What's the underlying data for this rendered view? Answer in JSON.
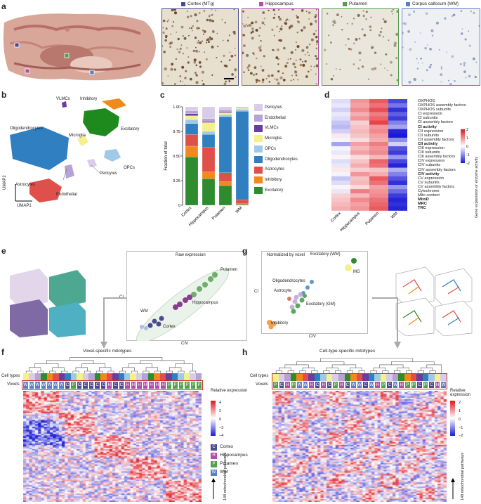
{
  "panels": {
    "a": "a",
    "b": "b",
    "c": "c",
    "d": "d",
    "e": "e",
    "f": "f",
    "g": "g",
    "h": "h"
  },
  "a": {
    "regions": [
      {
        "label": "Cortex (MTg)",
        "color": "#4b4b8f"
      },
      {
        "label": "Hippocampus",
        "color": "#b04ea8"
      },
      {
        "label": "Putamen",
        "color": "#54a04e"
      },
      {
        "label": "Corpus callosum (WM)",
        "color": "#5b7fc6"
      }
    ]
  },
  "b": {
    "labels": [
      "VLMCs",
      "Inhibitory",
      "Oligodendrocytes",
      "Microglia",
      "Excitatory",
      "OPCs",
      "Astrocytes",
      "Pericytes",
      "Endothelial"
    ],
    "xaxis": "UMAP1",
    "yaxis": "UMAP2"
  },
  "chart_data": [
    {
      "type": "bar",
      "stacked": true,
      "categories": [
        "Cortex",
        "Hippocampus",
        "Putamen",
        "WM"
      ],
      "ylabel": "Fraction of total",
      "ylim": [
        0,
        1
      ],
      "yticks": [
        "0",
        "0.25",
        "0.50",
        "0.75",
        "1.00"
      ],
      "legend_position": "right",
      "series": [
        {
          "name": "Excitatory",
          "color": "#2e8b2e",
          "values": [
            0.49,
            0.27,
            0.2,
            0.01
          ]
        },
        {
          "name": "Inhibitory",
          "color": "#f08a1c",
          "values": [
            0.11,
            0.07,
            0.04,
            0.005
          ]
        },
        {
          "name": "Astrocytes",
          "color": "#e0504a",
          "values": [
            0.12,
            0.25,
            0.09,
            0.04
          ]
        },
        {
          "name": "Oligodendrocytes",
          "color": "#2f7fc1",
          "values": [
            0.11,
            0.13,
            0.57,
            0.9
          ]
        },
        {
          "name": "OPCs",
          "color": "#9ecae8",
          "values": [
            0.04,
            0.03,
            0.02,
            0.02
          ]
        },
        {
          "name": "Microglia",
          "color": "#f4f08a",
          "values": [
            0.04,
            0.09,
            0.02,
            0.01
          ]
        },
        {
          "name": "VLMCs",
          "color": "#6a3d9a",
          "values": [
            0.02,
            0.01,
            0.01,
            0.003
          ]
        },
        {
          "name": "Endothelial",
          "color": "#b6a2d4",
          "values": [
            0.03,
            0.03,
            0.02,
            0.008
          ]
        },
        {
          "name": "Pericytes",
          "color": "#d9cce8",
          "values": [
            0.04,
            0.12,
            0.03,
            0.004
          ]
        }
      ]
    },
    {
      "type": "heatmap",
      "columns": [
        "Cortex",
        "Hippocampus",
        "Putamen",
        "WM"
      ],
      "rows": [
        "OXPHOS",
        "OXPHOS assembly factors",
        "OXPHOS subunits",
        "CI expression",
        "CI subunits",
        "CI assembly factors",
        "CI activity",
        "CII expression",
        "CII subunits",
        "CII assembly factors",
        "CII activity",
        "CIII expression",
        "CIII subunits",
        "CIII assembly factors",
        "CIV expression",
        "CIV subunits",
        "CIV assembly factors",
        "CIV activity",
        "CV expression",
        "CV subunits",
        "CV assembly factors",
        "Cytochrome",
        "Mito content",
        "MitoD",
        "MRC",
        "TRC"
      ],
      "bold_rows": [
        "CI activity",
        "CII activity",
        "CIV activity",
        "MitoD",
        "MRC",
        "TRC"
      ],
      "values": [
        [
          -0.3,
          0.9,
          1.4,
          -1.6
        ],
        [
          -0.2,
          0.8,
          1.2,
          -1.2
        ],
        [
          -0.4,
          1.0,
          1.5,
          -1.8
        ],
        [
          -0.2,
          0.7,
          1.1,
          -1.4
        ],
        [
          -0.3,
          0.9,
          1.3,
          -1.7
        ],
        [
          -0.5,
          0.4,
          1.6,
          -1.1
        ],
        [
          -0.6,
          0.5,
          0.9,
          -0.8
        ],
        [
          -0.4,
          0.6,
          1.0,
          -1.9
        ],
        [
          0.2,
          0.5,
          0.8,
          -2.0
        ],
        [
          -0.1,
          0.3,
          0.7,
          -1.0
        ],
        [
          -0.8,
          0.8,
          1.1,
          -0.4
        ],
        [
          -0.1,
          0.6,
          0.9,
          -1.5
        ],
        [
          -0.2,
          0.8,
          1.0,
          -1.7
        ],
        [
          0.1,
          0.3,
          0.6,
          -0.9
        ],
        [
          -0.3,
          0.5,
          1.3,
          -1.6
        ],
        [
          -0.2,
          0.7,
          1.2,
          -1.9
        ],
        [
          0.2,
          0.4,
          0.5,
          -0.7
        ],
        [
          -0.1,
          0.9,
          0.7,
          -1.1
        ],
        [
          -0.5,
          0.5,
          1.4,
          -1.5
        ],
        [
          -0.3,
          0.6,
          1.2,
          -1.8
        ],
        [
          0.1,
          0.3,
          0.8,
          -0.9
        ],
        [
          -0.2,
          1.1,
          0.9,
          -1.3
        ],
        [
          0.4,
          0.6,
          1.0,
          -1.7
        ],
        [
          0.5,
          1.0,
          1.2,
          -1.9
        ],
        [
          0.6,
          0.8,
          1.3,
          -1.8
        ],
        [
          0.7,
          0.9,
          1.4,
          -1.9
        ]
      ],
      "colorbar": {
        "ticks": [
          "2",
          "1",
          "0",
          "-1",
          "-2"
        ],
        "label": "Gene expression or enzyme activity"
      }
    }
  ],
  "e": {
    "title": "Raw expression",
    "xlabel": "CIV",
    "ylabel": "CI",
    "labels": [
      "Putamen",
      "Hippocampus",
      "WM",
      "Cortex"
    ]
  },
  "g": {
    "title": "Normalized by voxel",
    "xlabel": "CIV",
    "ylabel": "CI",
    "labels": [
      "Excitatory (WM)",
      "MG",
      "Oligodendrocytes",
      "Astrocyte",
      "Excitatory (GM)",
      "Inhibitory"
    ]
  },
  "f": {
    "title": "Voxel-specific mitotypes",
    "rowlabels": [
      "Cell types",
      "Voxels"
    ],
    "voxels": [
      "W",
      "W",
      "W",
      "W",
      "W",
      "W",
      "W",
      "C",
      "P",
      "C",
      "C",
      "C",
      "C",
      "C",
      "H",
      "C",
      "C",
      "H",
      "H",
      "H",
      "H",
      "H",
      "H",
      "H",
      "P",
      "P",
      "P",
      "P",
      "P",
      "P"
    ],
    "colorbar": {
      "label": "Relative expression",
      "ticks": [
        "4",
        "2",
        "0",
        "−2",
        "−4"
      ]
    },
    "legend": [
      {
        "code": "C",
        "label": "Cortex",
        "color": "#4b4b8f"
      },
      {
        "code": "H",
        "label": "Hippocampus",
        "color": "#b04ea8"
      },
      {
        "code": "P",
        "label": "Putamen",
        "color": "#54a04e"
      },
      {
        "code": "W",
        "label": "WM",
        "color": "#5b7fc6"
      }
    ],
    "pathways": "148 mitochondrial pathways"
  },
  "h": {
    "title": "Cell-type-specific mitotypes",
    "rowlabels": [
      "Cell types",
      "Voxels"
    ],
    "voxels": [
      "P",
      "C",
      "H",
      "P",
      "W",
      "W",
      "H",
      "C",
      "H",
      "C",
      "P",
      "H",
      "C",
      "W",
      "W",
      "C",
      "W",
      "H",
      "P",
      "C",
      "W",
      "H",
      "P",
      "P",
      "C",
      "P",
      "C",
      "H",
      "W"
    ],
    "colorbar": {
      "label": "Relative expression",
      "ticks": [
        "2",
        "1",
        "0",
        "−1",
        "−2"
      ]
    },
    "pathways": "148 mitochondrial pathways"
  }
}
